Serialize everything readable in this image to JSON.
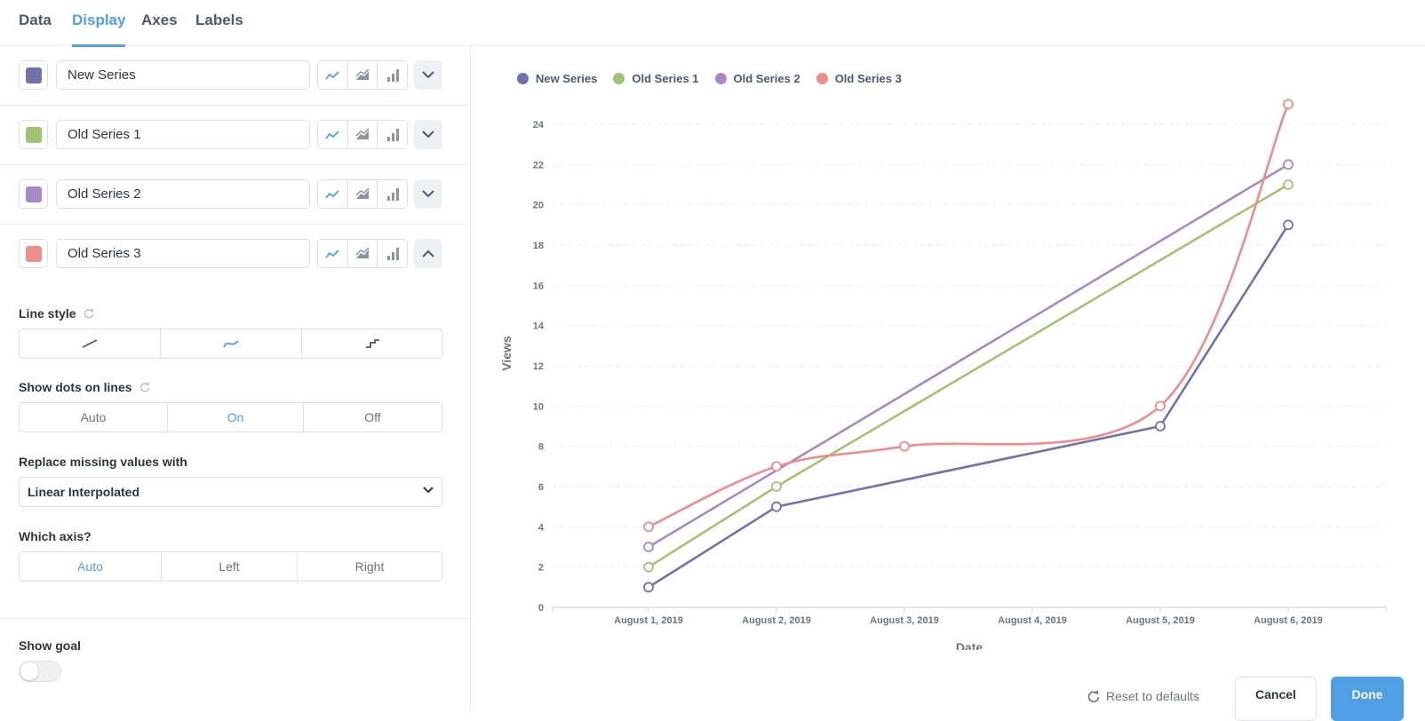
{
  "tabs": [
    "Data",
    "Display",
    "Axes",
    "Labels"
  ],
  "active_tab": "Display",
  "series": [
    {
      "name": "New Series",
      "color": "#7172ad"
    },
    {
      "name": "Old Series 1",
      "color": "#a1c373"
    },
    {
      "name": "Old Series 2",
      "color": "#a989c5"
    },
    {
      "name": "Old Series 3",
      "color": "#ef8c8c"
    }
  ],
  "settings": {
    "line_style_label": "Line style",
    "line_style_options": [
      "straight",
      "curved",
      "step"
    ],
    "line_style_selected": "curved",
    "dots_label": "Show dots on lines",
    "dots_options": [
      "Auto",
      "On",
      "Off"
    ],
    "dots_selected": "On",
    "missing_label": "Replace missing values with",
    "missing_value": "Linear Interpolated",
    "axis_label": "Which axis?",
    "axis_options": [
      "Auto",
      "Left",
      "Right"
    ],
    "axis_selected": "Auto",
    "goal_label": "Show goal",
    "goal_enabled": false
  },
  "footer": {
    "reset_label": "Reset to defaults",
    "cancel_label": "Cancel",
    "done_label": "Done"
  },
  "colors": {
    "accent": "#509ee3"
  },
  "chart_data": {
    "type": "line",
    "categories": [
      "August 1, 2019",
      "August 2, 2019",
      "August 3, 2019",
      "August 4, 2019",
      "August 5, 2019",
      "August 6, 2019"
    ],
    "xlabel": "Date",
    "ylabel": "Views",
    "ylim": [
      0,
      24
    ],
    "yticks": [
      0,
      2,
      4,
      6,
      8,
      10,
      12,
      14,
      16,
      18,
      20,
      22,
      24
    ],
    "grid": true,
    "legend_position": "top-left",
    "series": [
      {
        "name": "New Series",
        "color": "#7172ad",
        "curve": "straight",
        "points": [
          {
            "x": "August 1, 2019",
            "y": 1
          },
          {
            "x": "August 2, 2019",
            "y": 5
          },
          {
            "x": "August 5, 2019",
            "y": 9
          },
          {
            "x": "August 6, 2019",
            "y": 19
          }
        ]
      },
      {
        "name": "Old Series 1",
        "color": "#a1c373",
        "curve": "straight",
        "points": [
          {
            "x": "August 1, 2019",
            "y": 2
          },
          {
            "x": "August 2, 2019",
            "y": 6
          },
          {
            "x": "August 6, 2019",
            "y": 21
          }
        ]
      },
      {
        "name": "Old Series 2",
        "color": "#a989c5",
        "curve": "straight",
        "points": [
          {
            "x": "August 1, 2019",
            "y": 3
          },
          {
            "x": "August 6, 2019",
            "y": 22
          }
        ]
      },
      {
        "name": "Old Series 3",
        "color": "#ef8c8c",
        "curve": "smooth",
        "points": [
          {
            "x": "August 1, 2019",
            "y": 4
          },
          {
            "x": "August 2, 2019",
            "y": 7
          },
          {
            "x": "August 3, 2019",
            "y": 8
          },
          {
            "x": "August 5, 2019",
            "y": 10
          },
          {
            "x": "August 6, 2019",
            "y": 25
          }
        ]
      }
    ]
  }
}
